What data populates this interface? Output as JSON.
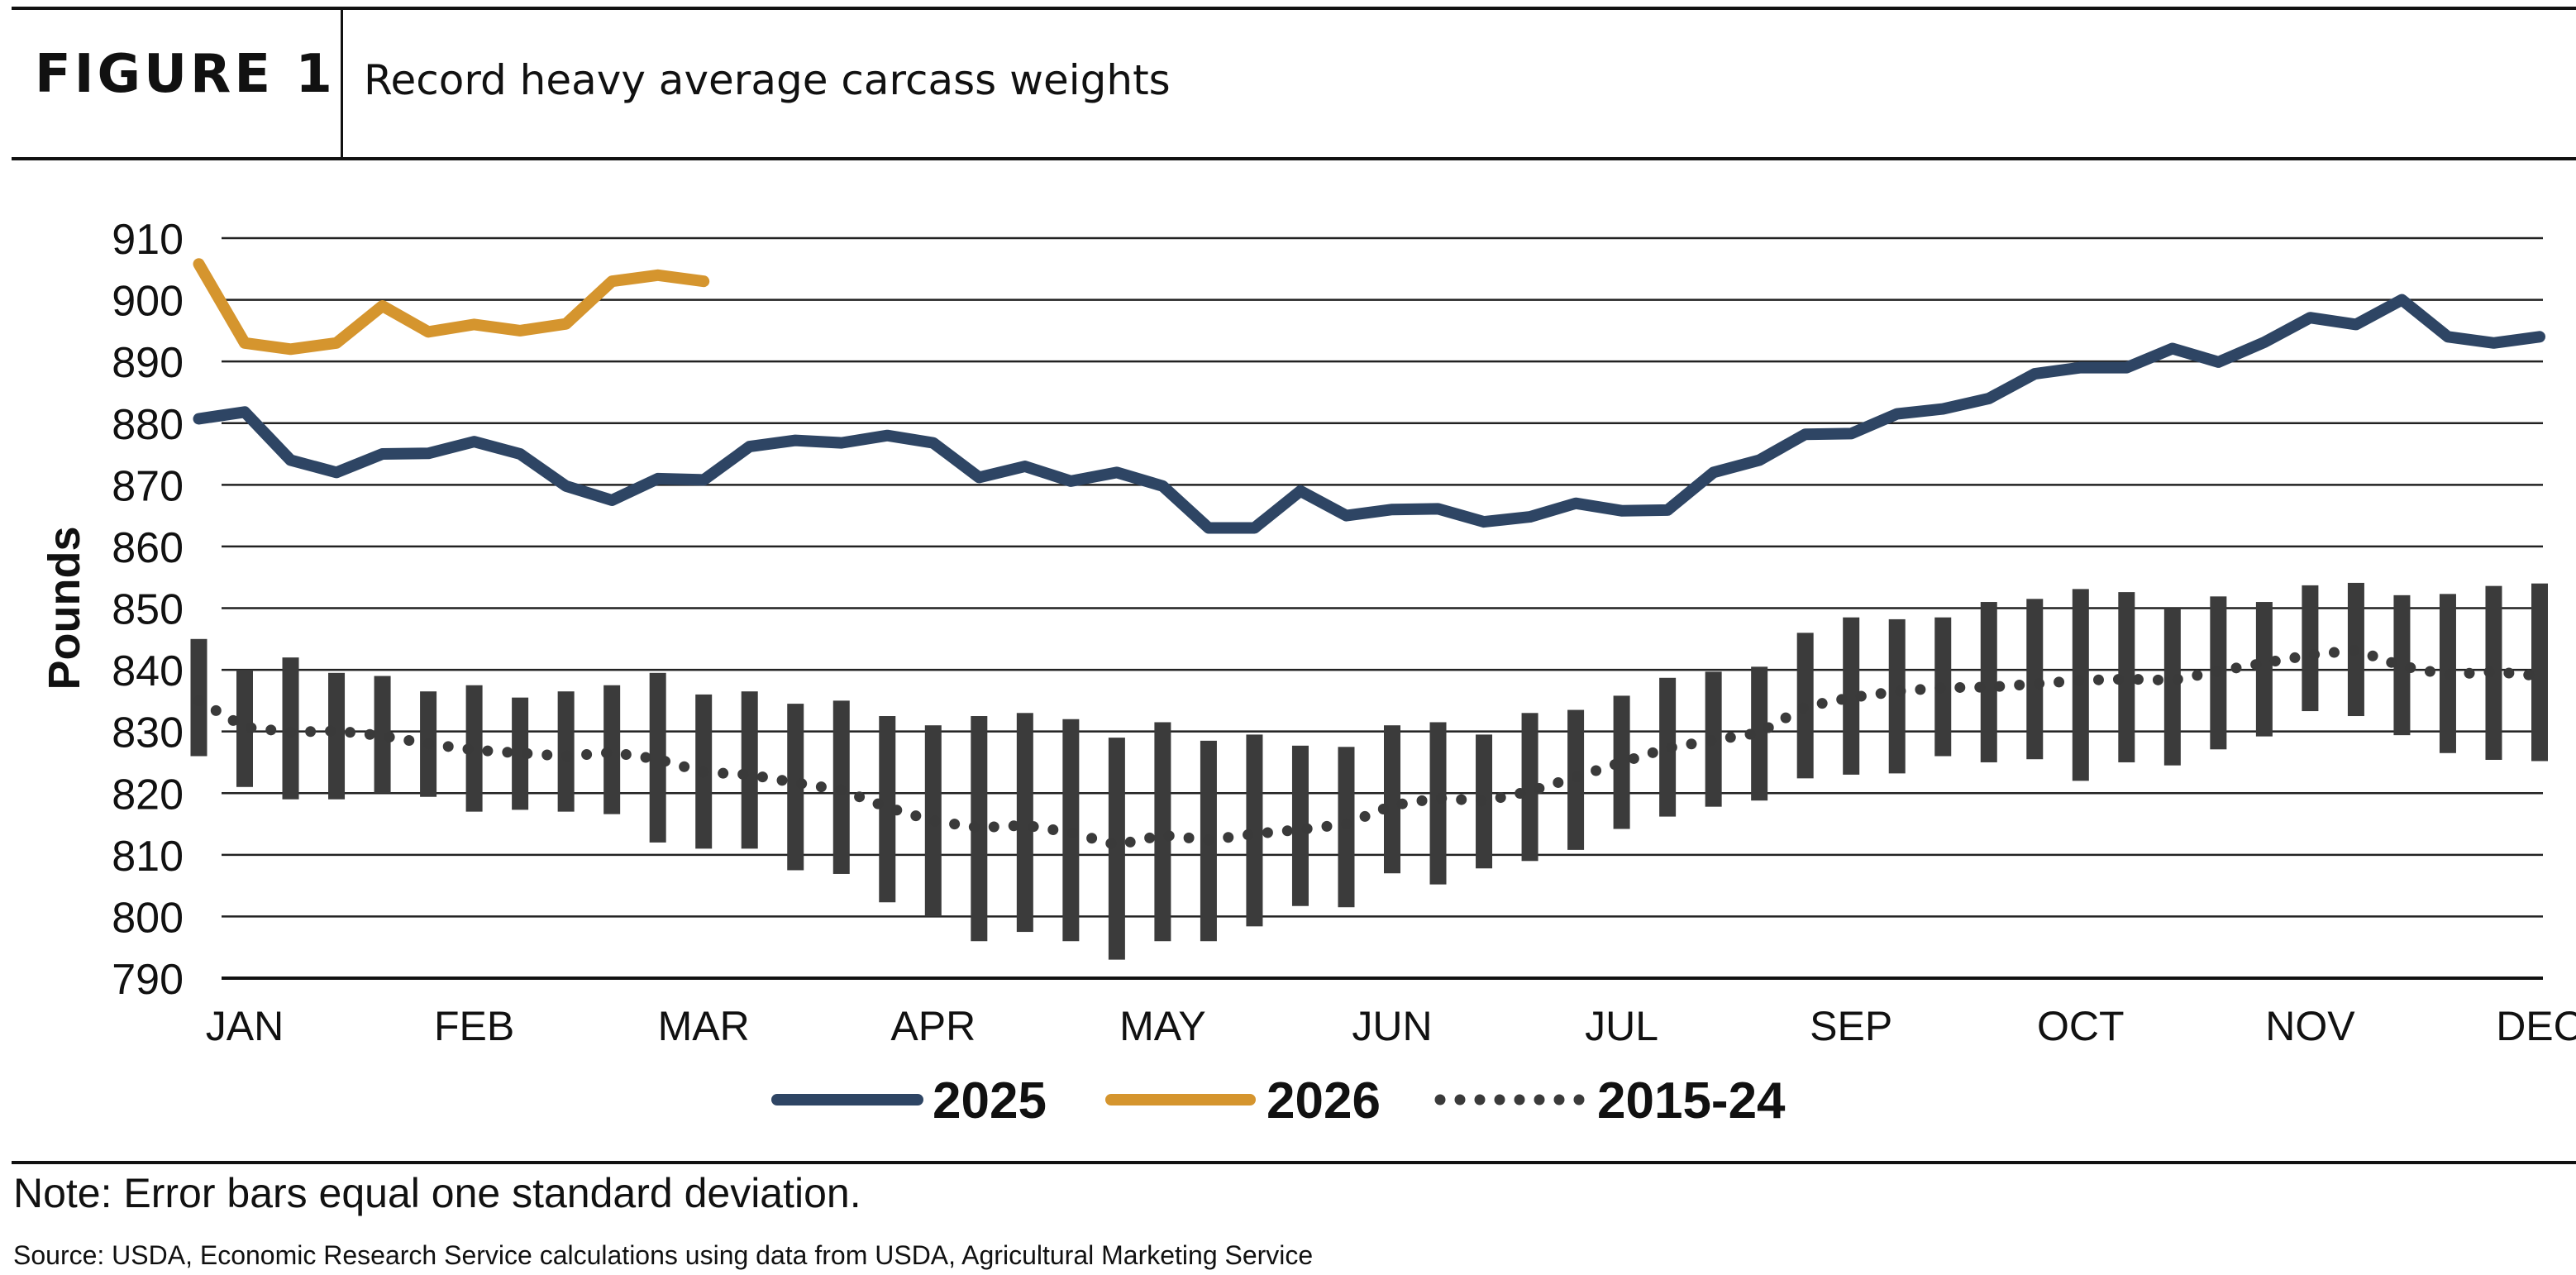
{
  "header": {
    "figure_label": "FIGURE 1",
    "title": "Record heavy average carcass weights"
  },
  "chart_data": {
    "type": "line",
    "title": "Record heavy average carcass weights",
    "xlabel": "",
    "ylabel": "Pounds",
    "ylim": [
      790,
      910
    ],
    "yticks": [
      790,
      800,
      810,
      820,
      830,
      840,
      850,
      860,
      870,
      880,
      890,
      900,
      910
    ],
    "xlim": [
      1,
      51
    ],
    "x_tick_labels": [
      "JAN",
      "FEB",
      "MAR",
      "APR",
      "MAY",
      "JUN",
      "JUL",
      "SEP",
      "OCT",
      "NOV",
      "DEC"
    ],
    "x_tick_positions": [
      1,
      6,
      11,
      16,
      21,
      26,
      31,
      36,
      41,
      46,
      51
    ],
    "grid": "horizontal",
    "legend_position": "bottom",
    "series": [
      {
        "name": "2025",
        "style": "solid",
        "color": "#2e4564",
        "values": [
          880.7,
          881.8,
          874,
          872,
          875,
          875.1,
          877,
          875,
          869.8,
          867.5,
          871,
          870.8,
          876.2,
          877.2,
          876.8,
          878,
          876.8,
          871.2,
          873,
          870.6,
          872,
          869.8,
          863,
          863,
          869,
          865,
          866,
          866.1,
          864,
          864.8,
          867,
          865.8,
          865.9,
          872,
          874,
          878.2,
          878.3,
          881.5,
          882.3,
          884,
          888,
          889,
          889,
          892.1,
          889.9,
          893.1,
          897.1,
          896,
          900,
          894,
          893,
          894
        ]
      },
      {
        "name": "2026",
        "style": "solid",
        "color": "#d5952e",
        "values": [
          905.8,
          893,
          892,
          893,
          899,
          894.8,
          896,
          895,
          896.1,
          903,
          904,
          903
        ]
      },
      {
        "name": "2015-24",
        "style": "dotted",
        "color": "#3a3a3a",
        "values": [
          835,
          830.7,
          829.9,
          830.1,
          829.3,
          828,
          827,
          826.5,
          826,
          826.6,
          825.5,
          823.4,
          823,
          821.7,
          820.5,
          817.7,
          815.5,
          814.4,
          814.8,
          813.6,
          811.6,
          813.2,
          812.4,
          813.4,
          814.1,
          815,
          818,
          819.2,
          818.7,
          820.3,
          822.6,
          825,
          827.3,
          828.6,
          829.8,
          834,
          835.5,
          836.5,
          837.1,
          837.2,
          837.7,
          838.3,
          838.5,
          838.3,
          839.8,
          841.1,
          842.4,
          843.2,
          840.6,
          839.2,
          839.7,
          839
        ]
      }
    ],
    "error_bars": {
      "name": "one standard deviation",
      "color": "#3b3b3b",
      "low": [
        826,
        821,
        819,
        819,
        820,
        819.4,
        817,
        817.3,
        817,
        816.6,
        812,
        811,
        811,
        807.5,
        806.9,
        802.3,
        800,
        796,
        797.5,
        796,
        793,
        796,
        796,
        798.4,
        801.7,
        801.5,
        807,
        805.2,
        807.8,
        809,
        810.8,
        814.2,
        816.2,
        817.8,
        818.8,
        822.4,
        823,
        823.2,
        826,
        825,
        825.5,
        822,
        825,
        824.5,
        827.1,
        829.2,
        833.3,
        832.5,
        829.4,
        826.5,
        825.4,
        825.2
      ],
      "high": [
        845,
        840,
        842,
        839.5,
        839,
        836.5,
        837.5,
        835.5,
        836.5,
        837.5,
        839.5,
        836,
        836.5,
        834.5,
        835,
        832.5,
        831,
        832.5,
        833,
        832,
        829,
        831.5,
        828.5,
        829.5,
        827.7,
        827.5,
        831,
        831.5,
        829.5,
        833,
        833.5,
        835.8,
        838.7,
        839.7,
        840.5,
        846,
        848.5,
        848.2,
        848.5,
        851,
        851.5,
        853.1,
        852.6,
        850,
        851.9,
        851,
        853.7,
        854.1,
        852.1,
        852.3,
        853.6,
        854
      ]
    }
  },
  "legend": [
    {
      "label": "2025",
      "color": "#2e4564",
      "style": "solid"
    },
    {
      "label": "2026",
      "color": "#d5952e",
      "style": "solid"
    },
    {
      "label": "2015-24",
      "color": "#3a3a3a",
      "style": "dotted"
    }
  ],
  "footer": {
    "note": "Note: Error bars equal one standard deviation.",
    "source": "Source: USDA, Economic Research Service calculations using data from USDA, Agricultural Marketing Service"
  }
}
